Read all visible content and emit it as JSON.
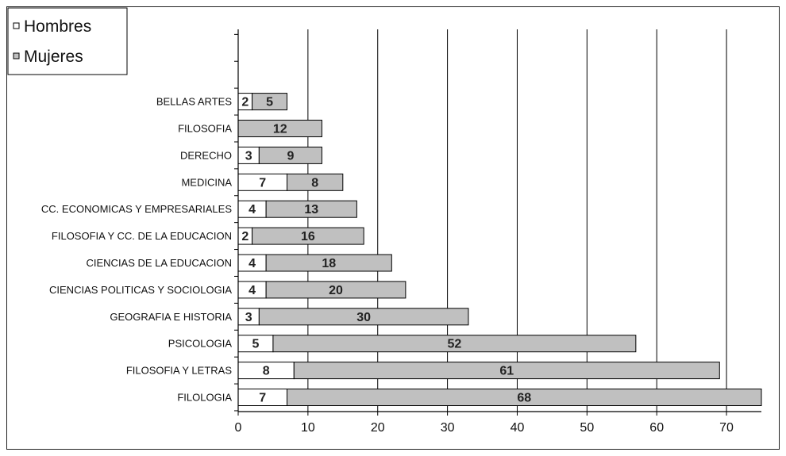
{
  "chart_data": {
    "type": "bar",
    "orientation": "horizontal",
    "stacked": true,
    "categories": [
      "FILOLOGIA",
      "FILOSOFIA Y LETRAS",
      "PSICOLOGIA",
      "GEOGRAFIA E HISTORIA",
      "CIENCIAS POLITICAS Y SOCIOLOGIA",
      "CIENCIAS DE LA EDUCACION",
      "FILOSOFIA Y CC. DE LA EDUCACION",
      "CC. ECONOMICAS Y EMPRESARIALES",
      "MEDICINA",
      "DERECHO",
      "FILOSOFIA",
      "BELLAS ARTES"
    ],
    "series": [
      {
        "name": "Hombres",
        "color": "#ffffff",
        "values": [
          7,
          8,
          5,
          3,
          4,
          4,
          2,
          4,
          7,
          3,
          0,
          2
        ],
        "labels": [
          "7",
          "8",
          "5",
          "3",
          "4",
          "4",
          "2",
          "4",
          "7",
          "3",
          "",
          "2"
        ]
      },
      {
        "name": "Mujeres",
        "color": "#c0c0c0",
        "values": [
          68,
          61,
          52,
          30,
          20,
          18,
          16,
          13,
          8,
          9,
          12,
          5
        ],
        "labels": [
          "68",
          "61",
          "52",
          "30",
          "20",
          "18",
          "16",
          "13",
          "8",
          "9",
          "12",
          "5"
        ]
      }
    ],
    "xticks": [
      "0",
      "10",
      "20",
      "30",
      "40",
      "50",
      "60",
      "70"
    ],
    "xlim": [
      0,
      75
    ],
    "grid": "vertical",
    "legend_position": "top-left",
    "title": "",
    "xlabel": "",
    "ylabel": ""
  }
}
